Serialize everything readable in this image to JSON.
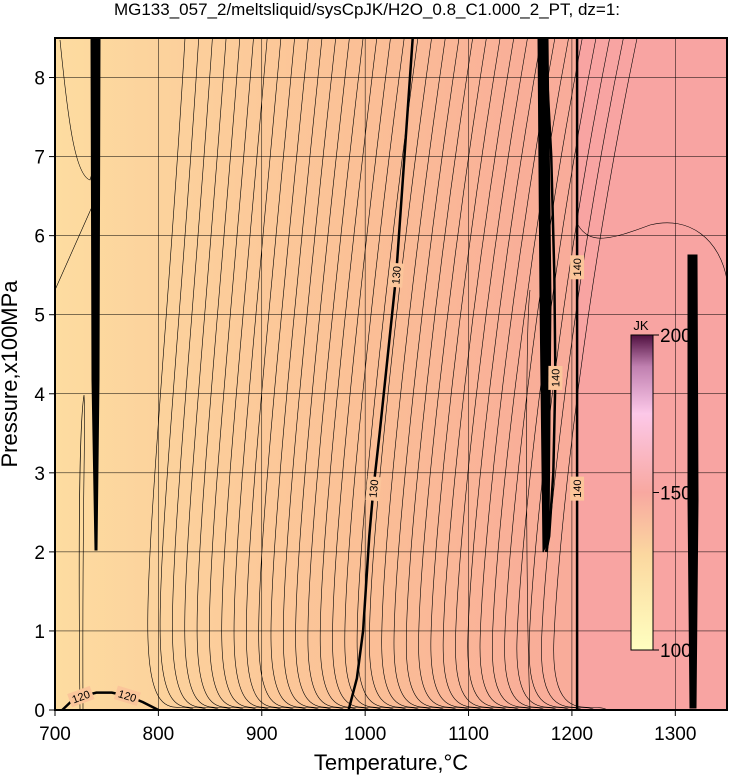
{
  "chart_data": {
    "type": "contour",
    "title": "MG133_057_2/meltsliquid/sysCpJK/H2O_0.8_C1.000_2_PT, dz=1:",
    "x_label": "Temperature,°C",
    "y_label": "Pressure,x100MPa",
    "xlim": [
      700,
      1350
    ],
    "ylim": [
      0,
      8.5
    ],
    "xticks": [
      700,
      800,
      900,
      1000,
      1100,
      1200,
      1300
    ],
    "yticks": [
      0,
      1,
      2,
      3,
      4,
      5,
      6,
      7,
      8
    ],
    "grid": true,
    "contours": [
      {
        "level": 120,
        "x": [
          707,
          715,
          725,
          740,
          755,
          770,
          785,
          800
        ],
        "y": [
          0,
          0.1,
          0.17,
          0.22,
          0.22,
          0.18,
          0.1,
          0
        ]
      },
      {
        "level": 130,
        "x": [
          984,
          992,
          998,
          1001,
          1004,
          1008,
          1014,
          1022,
          1030,
          1038,
          1046
        ],
        "y": [
          0,
          0.4,
          1,
          1.6,
          2.2,
          2.8,
          3.5,
          4.5,
          5.5,
          7,
          8.5
        ]
      },
      {
        "level": 140,
        "x": [
          1205,
          1205,
          1205,
          1205
        ],
        "y": [
          0,
          2.8,
          5.6,
          8.5
        ]
      },
      {
        "level": 140,
        "x": [
          1175,
          1178,
          1182,
          1184,
          1183,
          1180,
          1176,
          1175
        ],
        "y": [
          2,
          2.2,
          3,
          4.2,
          5.5,
          7,
          8,
          8.5
        ]
      }
    ],
    "colorbar": {
      "label": "JK",
      "lim": [
        100,
        200
      ],
      "ticks": [
        100,
        150,
        200
      ]
    }
  }
}
